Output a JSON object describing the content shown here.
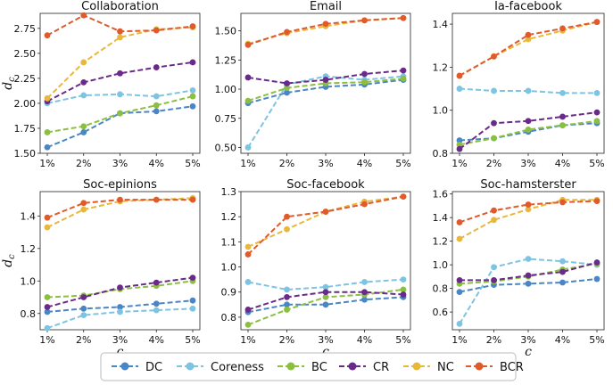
{
  "chart_data": {
    "type": "line",
    "categories": [
      "1%",
      "2%",
      "3%",
      "4%",
      "5%"
    ],
    "xlabel": "c",
    "ylabel": "d_c",
    "ylabel_main": "d",
    "ylabel_sub": "c",
    "series_names": [
      "DC",
      "Coreness",
      "BC",
      "CR",
      "NC",
      "BCR"
    ],
    "colors": {
      "DC": "#4a86c5",
      "Coreness": "#7ec4e2",
      "BC": "#8bbf3f",
      "CR": "#6a2a8a",
      "NC": "#e8b83a",
      "BCR": "#e05a2b"
    },
    "panels": [
      {
        "title": "Collaboration",
        "ylim": [
          1.5,
          2.9
        ],
        "yticks": [
          1.5,
          1.75,
          2.0,
          2.25,
          2.5,
          2.75
        ],
        "yticklabels": [
          "1.50",
          "1.75",
          "2.00",
          "2.25",
          "2.50",
          "2.75"
        ],
        "series": [
          {
            "name": "DC",
            "values": [
              1.56,
              1.71,
              1.9,
              1.92,
              1.97
            ]
          },
          {
            "name": "Coreness",
            "values": [
              2.0,
              2.08,
              2.09,
              2.07,
              2.13
            ]
          },
          {
            "name": "BC",
            "values": [
              1.71,
              1.77,
              1.9,
              1.98,
              2.07
            ]
          },
          {
            "name": "CR",
            "values": [
              2.02,
              2.21,
              2.3,
              2.36,
              2.41
            ]
          },
          {
            "name": "NC",
            "values": [
              2.05,
              2.41,
              2.66,
              2.74,
              2.76
            ]
          },
          {
            "name": "BCR",
            "values": [
              2.68,
              2.88,
              2.72,
              2.73,
              2.77
            ]
          }
        ]
      },
      {
        "title": "Email",
        "ylim": [
          0.45,
          1.65
        ],
        "yticks": [
          0.5,
          0.75,
          1.0,
          1.25,
          1.5
        ],
        "yticklabels": [
          "0.50",
          "0.75",
          "1.00",
          "1.25",
          "1.50"
        ],
        "series": [
          {
            "name": "DC",
            "values": [
              0.88,
              0.97,
              1.02,
              1.04,
              1.08
            ]
          },
          {
            "name": "Coreness",
            "values": [
              0.5,
              1.04,
              1.11,
              1.08,
              1.11
            ]
          },
          {
            "name": "BC",
            "values": [
              0.9,
              1.01,
              1.05,
              1.06,
              1.09
            ]
          },
          {
            "name": "CR",
            "values": [
              1.1,
              1.05,
              1.08,
              1.13,
              1.16
            ]
          },
          {
            "name": "NC",
            "values": [
              1.39,
              1.48,
              1.54,
              1.59,
              1.61
            ]
          },
          {
            "name": "BCR",
            "values": [
              1.38,
              1.49,
              1.56,
              1.59,
              1.61
            ]
          }
        ]
      },
      {
        "title": "Ia-facebook",
        "ylim": [
          0.8,
          1.45
        ],
        "yticks": [
          0.8,
          1.0,
          1.2,
          1.4
        ],
        "yticklabels": [
          "0.8",
          "1.0",
          "1.2",
          "1.4"
        ],
        "series": [
          {
            "name": "DC",
            "values": [
              0.86,
              0.87,
              0.9,
              0.93,
              0.94
            ]
          },
          {
            "name": "Coreness",
            "values": [
              1.1,
              1.09,
              1.09,
              1.08,
              1.08
            ]
          },
          {
            "name": "BC",
            "values": [
              0.84,
              0.87,
              0.91,
              0.93,
              0.95
            ]
          },
          {
            "name": "CR",
            "values": [
              0.82,
              0.94,
              0.95,
              0.97,
              0.99
            ]
          },
          {
            "name": "NC",
            "values": [
              1.16,
              1.25,
              1.33,
              1.37,
              1.41
            ]
          },
          {
            "name": "BCR",
            "values": [
              1.16,
              1.25,
              1.35,
              1.38,
              1.41
            ]
          }
        ]
      },
      {
        "title": "Soc-epinions",
        "ylim": [
          0.7,
          1.55
        ],
        "yticks": [
          0.8,
          1.0,
          1.2,
          1.4
        ],
        "yticklabels": [
          "0.8",
          "1.0",
          "1.2",
          "1.4"
        ],
        "series": [
          {
            "name": "DC",
            "values": [
              0.81,
              0.83,
              0.84,
              0.86,
              0.88
            ]
          },
          {
            "name": "Coreness",
            "values": [
              0.71,
              0.79,
              0.81,
              0.82,
              0.83
            ]
          },
          {
            "name": "BC",
            "values": [
              0.9,
              0.91,
              0.95,
              0.97,
              1.0
            ]
          },
          {
            "name": "CR",
            "values": [
              0.84,
              0.9,
              0.96,
              0.99,
              1.02
            ]
          },
          {
            "name": "NC",
            "values": [
              1.33,
              1.44,
              1.49,
              1.5,
              1.51
            ]
          },
          {
            "name": "BCR",
            "values": [
              1.39,
              1.48,
              1.5,
              1.5,
              1.5
            ]
          }
        ]
      },
      {
        "title": "Soc-facebook",
        "ylim": [
          0.75,
          1.3
        ],
        "yticks": [
          0.8,
          0.9,
          1.0,
          1.1,
          1.2,
          1.3
        ],
        "yticklabels": [
          "0.8",
          "0.9",
          "1.0",
          "1.1",
          "1.2",
          "1.3"
        ],
        "series": [
          {
            "name": "DC",
            "values": [
              0.82,
              0.85,
              0.85,
              0.87,
              0.88
            ]
          },
          {
            "name": "Coreness",
            "values": [
              0.94,
              0.91,
              0.92,
              0.94,
              0.95
            ]
          },
          {
            "name": "BC",
            "values": [
              0.77,
              0.83,
              0.88,
              0.89,
              0.91
            ]
          },
          {
            "name": "CR",
            "values": [
              0.83,
              0.88,
              0.9,
              0.9,
              0.89
            ]
          },
          {
            "name": "NC",
            "values": [
              1.08,
              1.15,
              1.22,
              1.26,
              1.28
            ]
          },
          {
            "name": "BCR",
            "values": [
              1.05,
              1.2,
              1.22,
              1.25,
              1.28
            ]
          }
        ]
      },
      {
        "title": "Soc-hamsterster",
        "ylim": [
          0.45,
          1.62
        ],
        "yticks": [
          0.6,
          0.8,
          1.0,
          1.2,
          1.4,
          1.6
        ],
        "yticklabels": [
          "0.6",
          "0.8",
          "1.0",
          "1.2",
          "1.4",
          "1.6"
        ],
        "series": [
          {
            "name": "DC",
            "values": [
              0.77,
              0.83,
              0.84,
              0.85,
              0.88
            ]
          },
          {
            "name": "Coreness",
            "values": [
              0.5,
              0.98,
              1.05,
              1.03,
              1.0
            ]
          },
          {
            "name": "BC",
            "values": [
              0.84,
              0.86,
              0.9,
              0.96,
              1.01
            ]
          },
          {
            "name": "CR",
            "values": [
              0.87,
              0.87,
              0.91,
              0.94,
              1.02
            ]
          },
          {
            "name": "NC",
            "values": [
              1.22,
              1.38,
              1.47,
              1.55,
              1.55
            ]
          },
          {
            "name": "BCR",
            "values": [
              1.36,
              1.46,
              1.51,
              1.53,
              1.54
            ]
          }
        ]
      }
    ]
  }
}
